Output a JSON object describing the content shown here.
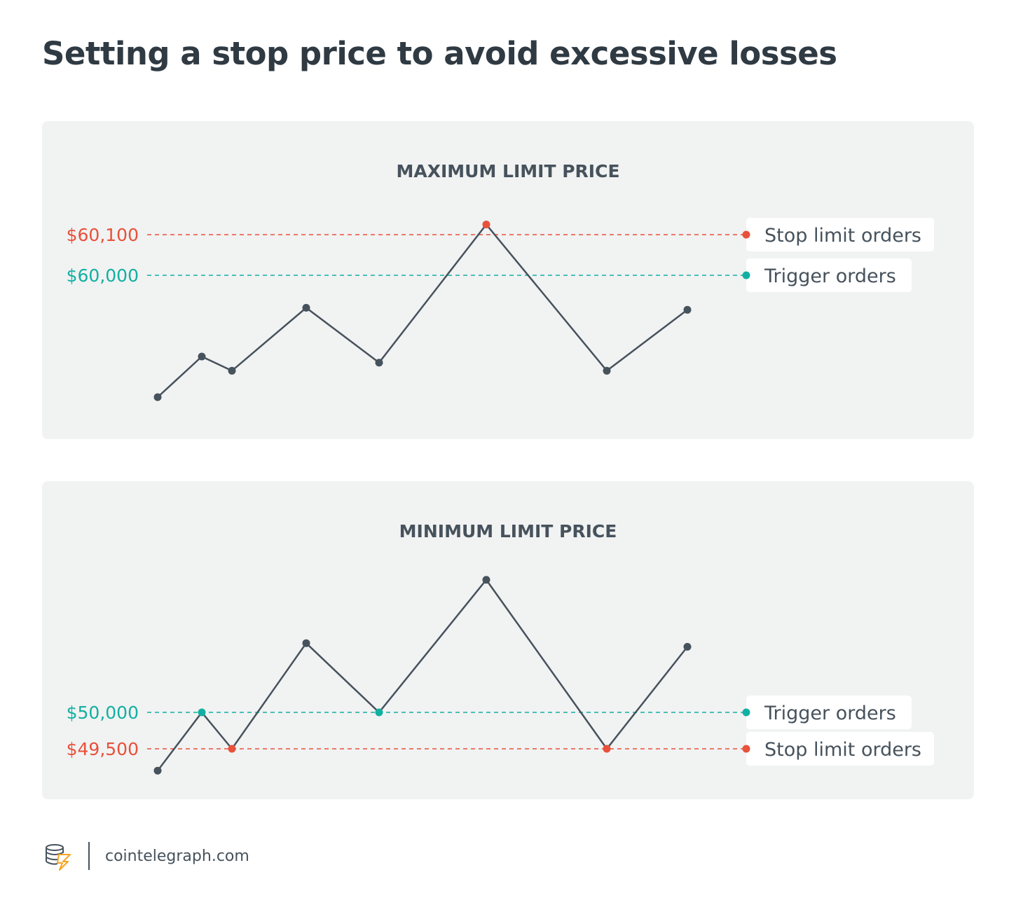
{
  "title": "Setting a stop price to avoid excessive losses",
  "colors": {
    "stop": "#e8513a",
    "trigger": "#12b0a2",
    "line": "#46525c",
    "panel_bg": "#f1f2f2",
    "legend_bg": "#ffffff"
  },
  "chart_data": [
    {
      "type": "line",
      "title": "MAXIMUM LIMIT PRICE",
      "reference_lines": [
        {
          "label": "$60,100",
          "value": 60100,
          "legend": "Stop limit orders",
          "kind": "stop"
        },
        {
          "label": "$60,000",
          "value": 60000,
          "legend": "Trigger orders",
          "kind": "trigger"
        }
      ],
      "series": [
        {
          "values": [
            59700,
            59800,
            59765,
            59920,
            59785,
            60125,
            59765,
            59915
          ]
        }
      ],
      "highlights": [
        {
          "index": 5,
          "kind": "stop"
        }
      ]
    },
    {
      "type": "line",
      "title": "MINIMUM LIMIT PRICE",
      "reference_lines": [
        {
          "label": "$50,000",
          "value": 50000,
          "legend": "Trigger orders",
          "kind": "trigger"
        },
        {
          "label": "$49,500",
          "value": 49500,
          "legend": "Stop limit orders",
          "kind": "stop"
        }
      ],
      "series": [
        {
          "values": [
            49200,
            50000,
            49500,
            50950,
            50000,
            51820,
            49500,
            50900
          ]
        }
      ],
      "highlights": [
        {
          "index": 1,
          "kind": "trigger"
        },
        {
          "index": 2,
          "kind": "stop"
        },
        {
          "index": 4,
          "kind": "trigger"
        },
        {
          "index": 6,
          "kind": "stop"
        }
      ]
    }
  ],
  "footer": {
    "logo_icon": "cointelegraph-coins-logo",
    "site": "cointelegraph.com"
  }
}
